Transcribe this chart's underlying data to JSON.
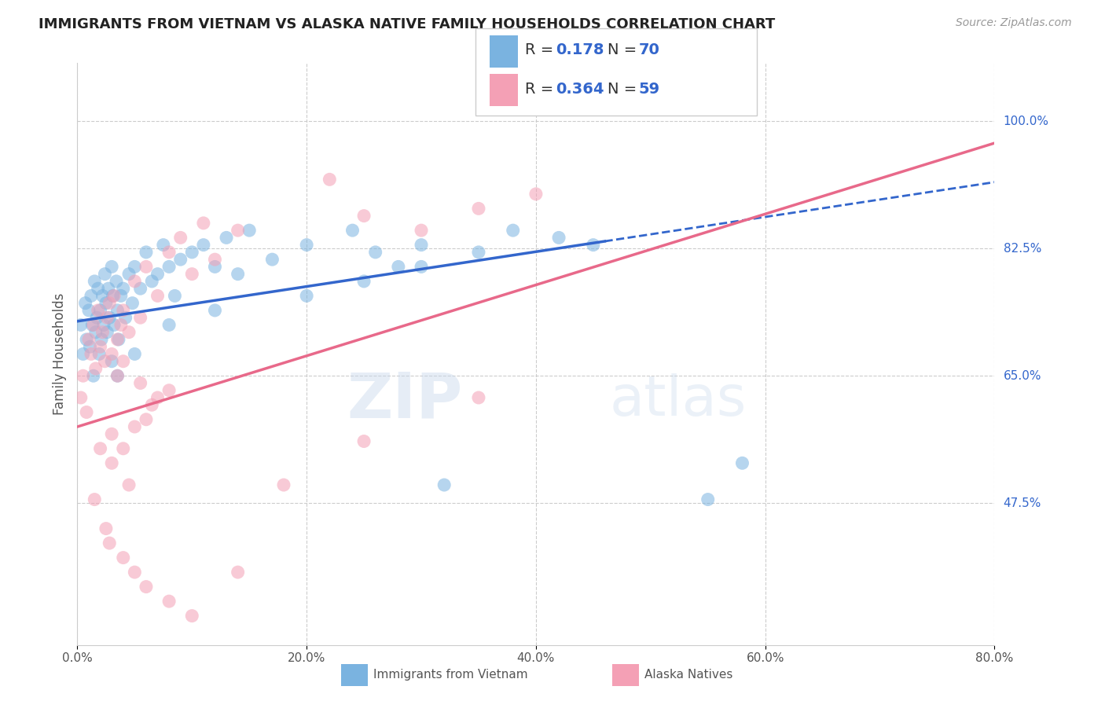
{
  "title": "IMMIGRANTS FROM VIETNAM VS ALASKA NATIVE FAMILY HOUSEHOLDS CORRELATION CHART",
  "source": "Source: ZipAtlas.com",
  "ylabel": "Family Households",
  "x_tick_labels": [
    "0.0%",
    "20.0%",
    "40.0%",
    "60.0%",
    "80.0%"
  ],
  "x_tick_vals": [
    0.0,
    20.0,
    40.0,
    60.0,
    80.0
  ],
  "y_tick_labels": [
    "47.5%",
    "65.0%",
    "82.5%",
    "100.0%"
  ],
  "y_tick_vals": [
    47.5,
    65.0,
    82.5,
    100.0
  ],
  "xlim": [
    0.0,
    80.0
  ],
  "ylim": [
    28.0,
    108.0
  ],
  "legend_label_blue": "Immigrants from Vietnam",
  "legend_label_pink": "Alaska Natives",
  "R_blue": 0.178,
  "N_blue": 70,
  "R_pink": 0.364,
  "N_pink": 59,
  "blue_color": "#7ab3e0",
  "pink_color": "#f4a0b5",
  "blue_line_color": "#3366cc",
  "pink_line_color": "#e8698a",
  "watermark_zip": "ZIP",
  "watermark_atlas": "atlas",
  "blue_line_x0": 0.0,
  "blue_line_y0": 72.5,
  "blue_line_x1": 46.0,
  "blue_line_y1": 83.5,
  "pink_line_x0": 0.0,
  "pink_line_y0": 58.0,
  "pink_line_x1": 80.0,
  "pink_line_y1": 97.0,
  "blue_solid_end": 46.0,
  "pink_solid_end": 80.0,
  "blue_scatter_x": [
    0.3,
    0.5,
    0.7,
    0.8,
    1.0,
    1.1,
    1.2,
    1.3,
    1.4,
    1.5,
    1.6,
    1.7,
    1.8,
    1.9,
    2.0,
    2.1,
    2.2,
    2.3,
    2.4,
    2.5,
    2.6,
    2.7,
    2.8,
    3.0,
    3.1,
    3.2,
    3.4,
    3.5,
    3.6,
    3.8,
    4.0,
    4.2,
    4.5,
    4.8,
    5.0,
    5.5,
    6.0,
    6.5,
    7.0,
    7.5,
    8.0,
    8.5,
    9.0,
    10.0,
    11.0,
    12.0,
    13.0,
    14.0,
    15.0,
    17.0,
    20.0,
    24.0,
    26.0,
    28.0,
    30.0,
    35.0,
    38.0,
    42.0,
    45.0,
    32.0,
    55.0,
    58.0,
    3.0,
    3.5,
    5.0,
    8.0,
    12.0,
    20.0,
    25.0,
    30.0
  ],
  "blue_scatter_y": [
    72.0,
    68.0,
    75.0,
    70.0,
    74.0,
    69.0,
    76.0,
    72.0,
    65.0,
    78.0,
    71.0,
    73.0,
    77.0,
    68.0,
    74.0,
    70.0,
    76.0,
    72.0,
    79.0,
    75.0,
    71.0,
    77.0,
    73.0,
    80.0,
    76.0,
    72.0,
    78.0,
    74.0,
    70.0,
    76.0,
    77.0,
    73.0,
    79.0,
    75.0,
    80.0,
    77.0,
    82.0,
    78.0,
    79.0,
    83.0,
    80.0,
    76.0,
    81.0,
    82.0,
    83.0,
    80.0,
    84.0,
    79.0,
    85.0,
    81.0,
    83.0,
    85.0,
    82.0,
    80.0,
    83.0,
    82.0,
    85.0,
    84.0,
    83.0,
    50.0,
    48.0,
    53.0,
    67.0,
    65.0,
    68.0,
    72.0,
    74.0,
    76.0,
    78.0,
    80.0
  ],
  "pink_scatter_x": [
    0.3,
    0.5,
    0.8,
    1.0,
    1.2,
    1.4,
    1.6,
    1.8,
    2.0,
    2.2,
    2.4,
    2.6,
    2.8,
    3.0,
    3.2,
    3.5,
    3.8,
    4.0,
    4.5,
    5.0,
    5.5,
    6.0,
    7.0,
    8.0,
    9.0,
    10.0,
    11.0,
    12.0,
    14.0,
    3.0,
    4.0,
    5.0,
    6.0,
    7.0,
    8.0,
    2.0,
    3.0,
    4.5,
    1.5,
    2.5,
    30.0,
    35.0,
    40.0,
    22.0,
    25.0,
    3.5,
    4.0,
    5.5,
    6.5,
    2.8,
    4.0,
    5.0,
    6.0,
    8.0,
    10.0,
    14.0,
    18.0,
    25.0,
    35.0
  ],
  "pink_scatter_y": [
    62.0,
    65.0,
    60.0,
    70.0,
    68.0,
    72.0,
    66.0,
    74.0,
    69.0,
    71.0,
    67.0,
    73.0,
    75.0,
    68.0,
    76.0,
    70.0,
    72.0,
    74.0,
    71.0,
    78.0,
    73.0,
    80.0,
    76.0,
    82.0,
    84.0,
    79.0,
    86.0,
    81.0,
    85.0,
    57.0,
    55.0,
    58.0,
    59.0,
    62.0,
    63.0,
    55.0,
    53.0,
    50.0,
    48.0,
    44.0,
    85.0,
    88.0,
    90.0,
    92.0,
    87.0,
    65.0,
    67.0,
    64.0,
    61.0,
    42.0,
    40.0,
    38.0,
    36.0,
    34.0,
    32.0,
    38.0,
    50.0,
    56.0,
    62.0
  ]
}
